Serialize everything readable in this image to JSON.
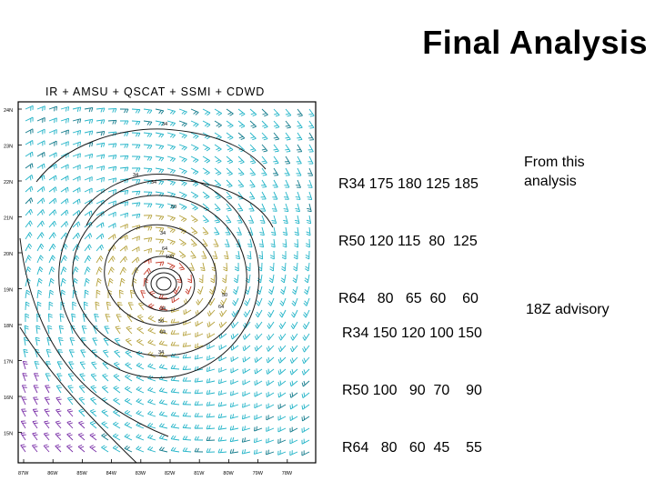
{
  "title": "Final Analysis",
  "map": {
    "header": "IR + AMSU + QSCAT + SSMI + CDWD",
    "lat_labels": [
      "24N",
      "23N",
      "22N",
      "21N",
      "20N",
      "19N",
      "18N",
      "17N",
      "16N",
      "15N"
    ],
    "lon_labels": [
      "87W",
      "86W",
      "85W",
      "84W",
      "83W",
      "82W",
      "81W",
      "80W",
      "79W",
      "78W"
    ],
    "contour_labels": [
      "34",
      "34",
      "34",
      "50",
      "34",
      "64",
      "100",
      "50",
      "64",
      "34",
      "50",
      "64",
      "34"
    ],
    "colors": {
      "cyan": "#22b4c8",
      "teal": "#117a8b",
      "olive": "#b6a23c",
      "red": "#c63b2a",
      "purple": "#7a2fa8",
      "contour": "#1a1a1a"
    }
  },
  "analysis": {
    "rows": [
      "R34 175 180 125 185",
      "R50 120 115  80  125",
      "R64   80   65  60    60"
    ],
    "note": "From this analysis"
  },
  "advisory": {
    "rows": [
      "R34 150 120 100 150",
      "R50 100   90  70    90",
      "R64   80   60  45    55"
    ],
    "note": "18Z advisory"
  }
}
